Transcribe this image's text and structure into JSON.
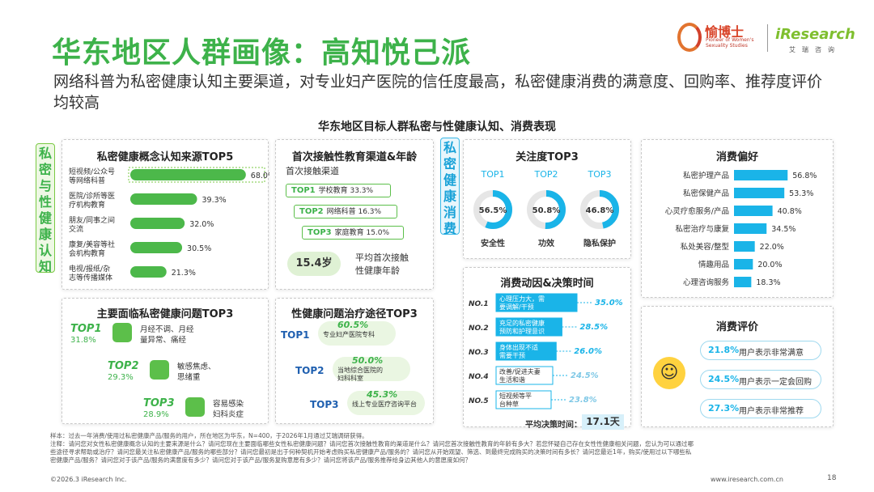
{
  "header": {
    "title": "华东地区人群画像：高知悦己派",
    "subtitle": "网络科普为私密健康认知主要渠道，对专业妇产医院的信任度最高，私密健康消费的满意度、回购率、推荐度评价均较高",
    "logo_brand": "愉博士",
    "logo_brand_sub": "Pioneer of Women's Sexuality Studies",
    "logo_research": "iResearch",
    "logo_research_sub": "艾瑞咨询",
    "main_title": "华东地区目标人群私密与性健康认知、消费表现"
  },
  "side_tags": {
    "left": "私密与性健康认知",
    "right": "私密健康消费"
  },
  "panel_sources": {
    "title": "私密健康概念认知来源TOP5",
    "chart_data": {
      "type": "bar",
      "categories": [
        "短视频/公众号等网络科普",
        "医院/诊所等医疗机构教育",
        "朋友/同事之间交流",
        "康复/美容等社会机构教育",
        "电视/报纸/杂志等传播媒体"
      ],
      "values": [
        68.0,
        39.3,
        32.0,
        30.5,
        21.3
      ],
      "labels": [
        "68.0%",
        "39.3%",
        "32.0%",
        "30.5%",
        "21.3%"
      ],
      "lines": [
        [
          "短视频/公众号",
          "等网络科普"
        ],
        [
          "医院/诊所等医",
          "疗机构教育"
        ],
        [
          "朋友/同事之间",
          "交流"
        ],
        [
          "康复/美容等社",
          "会机构教育"
        ],
        [
          "电视/报纸/杂",
          "志等传播媒体"
        ]
      ],
      "xlim": [
        0,
        100
      ],
      "color": "#4cb84a"
    }
  },
  "panel_channels": {
    "title": "首次接触性教育渠道&年龄",
    "subheading": "首次接触渠道",
    "items": [
      {
        "rank": "TOP1",
        "name": "学校教育",
        "value": "33.3%"
      },
      {
        "rank": "TOP2",
        "name": "网络科普",
        "value": "16.3%"
      },
      {
        "rank": "TOP3",
        "name": "家庭教育",
        "value": "15.0%"
      }
    ],
    "age_value": "15.4岁",
    "age_label_1": "平均首次接触",
    "age_label_2": "性健康年龄"
  },
  "panel_problems": {
    "title": "主要面临私密健康问题TOP3",
    "items": [
      {
        "rank": "TOP1",
        "pct": "31.8%",
        "text1": "月经不调、月经",
        "text2": "量异常、痛经"
      },
      {
        "rank": "TOP2",
        "pct": "29.3%",
        "text1": "敏感焦虑、",
        "text2": "思绪重"
      },
      {
        "rank": "TOP3",
        "pct": "28.9%",
        "text1": "容易感染",
        "text2": "妇科炎症"
      }
    ]
  },
  "panel_treatment": {
    "title": "性健康问题治疗途径TOP3",
    "items": [
      {
        "rank": "TOP1",
        "pct": "60.5%",
        "text1": "专业妇产医院专科",
        "text2": ""
      },
      {
        "rank": "TOP2",
        "pct": "50.0%",
        "text1": "当地综合医院的",
        "text2": "妇科科室"
      },
      {
        "rank": "TOP3",
        "pct": "45.3%",
        "text1": "线上专业医疗咨询平台",
        "text2": ""
      }
    ]
  },
  "panel_attention": {
    "title": "关注度TOP3",
    "chart_data": {
      "type": "pie",
      "ranks": [
        "TOP1",
        "TOP2",
        "TOP3"
      ],
      "categories": [
        "安全性",
        "功效",
        "隐私保护"
      ],
      "values": [
        56.5,
        50.8,
        46.8
      ],
      "labels": [
        "56.5%",
        "50.8%",
        "46.8%"
      ]
    }
  },
  "panel_motive": {
    "title": "消费动因&决策时间",
    "chart_data": {
      "type": "bar",
      "ranks": [
        "NO.1",
        "NO.2",
        "NO.3",
        "NO.4",
        "NO.5"
      ],
      "lines": [
        [
          "心理压力大，需",
          "要调解/干预"
        ],
        [
          "充足的私密健康",
          "预防和护理意识"
        ],
        [
          "身体出现不适",
          "需要干预"
        ],
        [
          "改善/促进夫妻",
          "生活和谐"
        ],
        [
          "短视频等平",
          "台种草"
        ]
      ],
      "values": [
        35.0,
        28.5,
        26.0,
        24.5,
        23.8
      ],
      "labels": [
        "35.0%",
        "28.5%",
        "26.0%",
        "24.5%",
        "23.8%"
      ],
      "colors": [
        "#1ab4e8",
        "#1ab4e8",
        "#1ab4e8",
        "#ffffff",
        "#ffffff"
      ]
    },
    "decision_label": "平均决策时间：",
    "decision_value": "17.1天"
  },
  "panel_preference": {
    "title": "消费偏好",
    "chart_data": {
      "type": "bar",
      "categories": [
        "私密护理产品",
        "私密保健产品",
        "心灵疗愈服务/产品",
        "私密治疗与康复",
        "私处美容/整型",
        "情趣用品",
        "心理咨询服务"
      ],
      "values": [
        56.8,
        53.3,
        40.8,
        34.5,
        22.0,
        20.0,
        18.3
      ],
      "labels": [
        "56.8%",
        "53.3%",
        "40.8%",
        "34.5%",
        "22.0%",
        "20.0%",
        "18.3%"
      ],
      "xlim": [
        0,
        60
      ],
      "color": "#1ab4e8"
    }
  },
  "panel_evaluation": {
    "title": "消费评价",
    "items": [
      {
        "pct": "21.8%",
        "text": "用户表示非常满意"
      },
      {
        "pct": "24.5%",
        "text": "用户表示一定会回购"
      },
      {
        "pct": "27.3%",
        "text": "用户表示非常推荐"
      }
    ]
  },
  "footer": {
    "sample": "样本：过去一年消费/使用过私密健康产品/服务的用户，所在地区为华东，N=400，于2026年1月通过艾瑞调研获得。",
    "note1": "注释：请问您对女性私密健康概念认知的主要来源是什么？请问您现在主要面临哪些女性私密健康问题？请问您首次接触性教育的渠道是什么？请问您首次接触性教育的年龄有多大？若您怀疑自己存在女性性健康相关问题，您认为可以通过哪",
    "note2": "些途径寻求帮助或治疗？请问您最关注私密健康产品/服务的哪些部分？请问您最初是出于何种契机开始考虑购买私密健康产品/服务的？请问您从开始观望、筛选、到最终完成购买的决策时间有多长？请问您最近1年，购买/使用过以下哪些私",
    "note3": "密健康产品/服务？请问您对于该产品/服务的满意度有多少？请问您对于该产品/服务复购意愿有多少？请问您将该产品/服务推荐给身边其他人的意愿度如何？",
    "copyright": "©2026.3 iResearch Inc.",
    "site": "www.iresearch.com.cn",
    "page": "18"
  },
  "colors": {
    "green": "#3db24a",
    "blue": "#1ab4e8"
  }
}
